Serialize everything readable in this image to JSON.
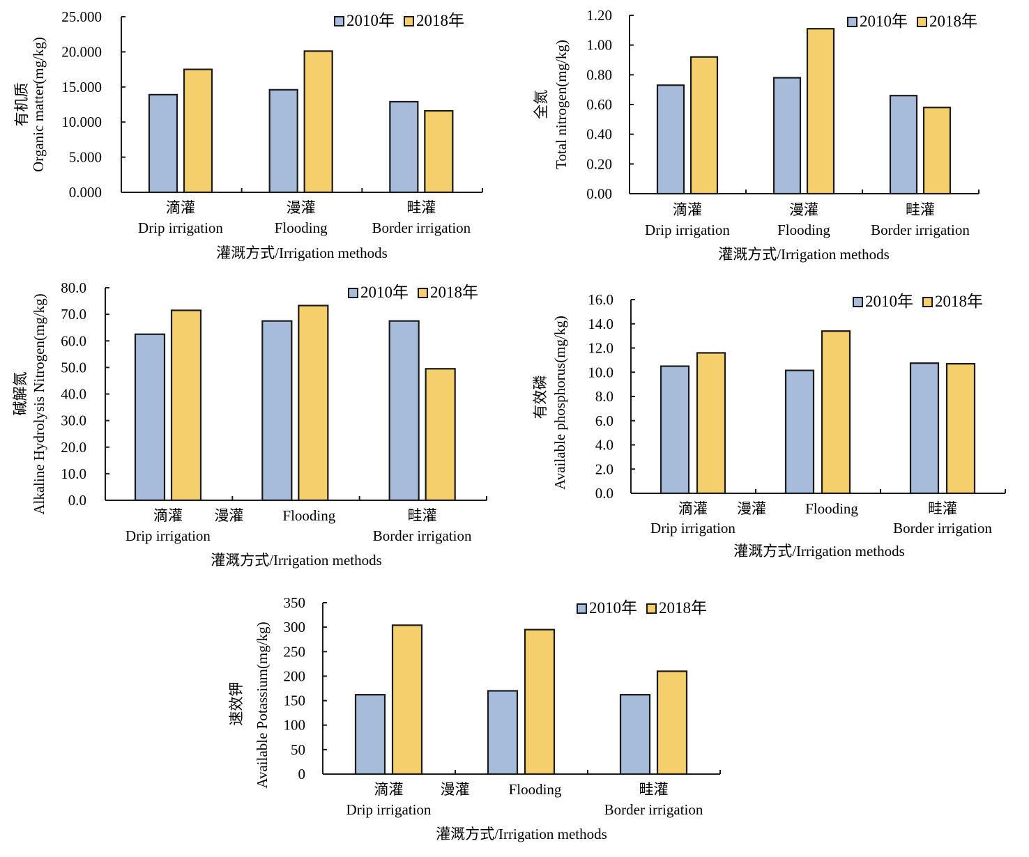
{
  "chart_data": [
    {
      "type": "bar",
      "id": "organic-matter",
      "ylabel_cn": "有机质",
      "ylabel_en": "Organic matter(mg/kg)",
      "xlabel": "灌溉方式/Irrigation methods",
      "categories_cn": [
        "滴灌",
        "漫灌",
        "畦灌"
      ],
      "categories_en": [
        "Drip irrigation",
        "Flooding",
        "Border irrigation"
      ],
      "ylim": [
        0,
        25
      ],
      "yticks": [
        "0.000",
        "5.000",
        "10.000",
        "15.000",
        "20.000",
        "25.000"
      ],
      "ytick_values": [
        0,
        5,
        10,
        15,
        20,
        25
      ],
      "legend": [
        "2010年",
        "2018年"
      ],
      "legend_position": "top-right",
      "series": [
        {
          "name": "2010年",
          "values": [
            13.9,
            14.6,
            12.9
          ]
        },
        {
          "name": "2018年",
          "values": [
            17.5,
            20.1,
            11.6
          ]
        }
      ]
    },
    {
      "type": "bar",
      "id": "total-nitrogen",
      "ylabel_cn": "全氮",
      "ylabel_en": "Total nitrogen(mg/kg)",
      "xlabel": "灌溉方式/Irrigation methods",
      "categories_cn": [
        "滴灌",
        "漫灌",
        "畦灌"
      ],
      "categories_en": [
        "Drip irrigation",
        "Flooding",
        "Border irrigation"
      ],
      "ylim": [
        0,
        1.2
      ],
      "yticks": [
        "0.00",
        "0.20",
        "0.40",
        "0.60",
        "0.80",
        "1.00",
        "1.20"
      ],
      "ytick_values": [
        0,
        0.2,
        0.4,
        0.6,
        0.8,
        1.0,
        1.2
      ],
      "legend": [
        "2010年",
        "2018年"
      ],
      "legend_position": "top-right",
      "series": [
        {
          "name": "2010年",
          "values": [
            0.73,
            0.78,
            0.66
          ]
        },
        {
          "name": "2018年",
          "values": [
            0.92,
            1.11,
            0.58
          ]
        }
      ]
    },
    {
      "type": "bar",
      "id": "alkaline-hydrolysis-nitrogen",
      "ylabel_cn": "碱解氮",
      "ylabel_en": "Alkaline  Hydrolysis  Nitrogen(mg/kg)",
      "xlabel": "灌溉方式/Irrigation methods",
      "categories_cn": [
        "滴灌",
        "漫灌",
        "畦灌"
      ],
      "categories_en": [
        "Drip irrigation",
        "Flooding",
        "Border irrigation"
      ],
      "ylim": [
        0,
        80
      ],
      "yticks": [
        "0.0",
        "10.0",
        "20.0",
        "30.0",
        "40.0",
        "50.0",
        "60.0",
        "70.0",
        "80.0"
      ],
      "ytick_values": [
        0,
        10,
        20,
        30,
        40,
        50,
        60,
        70,
        80
      ],
      "legend": [
        "2010年",
        "2018年"
      ],
      "legend_position": "top-right",
      "series": [
        {
          "name": "2010年",
          "values": [
            62.5,
            67.5,
            67.5
          ]
        },
        {
          "name": "2018年",
          "values": [
            71.5,
            73.3,
            49.5
          ]
        }
      ]
    },
    {
      "type": "bar",
      "id": "available-phosphorus",
      "ylabel_cn": "有效磷",
      "ylabel_en": "Available phosphorus(mg/kg)",
      "xlabel": "灌溉方式/Irrigation methods",
      "categories_cn": [
        "滴灌",
        "漫灌",
        "畦灌"
      ],
      "categories_en": [
        "Drip irrigation",
        "Flooding",
        "Border irrigation"
      ],
      "ylim": [
        0,
        16
      ],
      "yticks": [
        "0.0",
        "2.0",
        "4.0",
        "6.0",
        "8.0",
        "10.0",
        "12.0",
        "14.0",
        "16.0"
      ],
      "ytick_values": [
        0,
        2,
        4,
        6,
        8,
        10,
        12,
        14,
        16
      ],
      "legend": [
        "2010年",
        "2018年"
      ],
      "legend_position": "top-right",
      "series": [
        {
          "name": "2010年",
          "values": [
            10.5,
            10.15,
            10.75
          ]
        },
        {
          "name": "2018年",
          "values": [
            11.6,
            13.4,
            10.7
          ]
        }
      ]
    },
    {
      "type": "bar",
      "id": "available-potassium",
      "ylabel_cn": "速效钾",
      "ylabel_en": "Available Potassium(mg/kg)",
      "xlabel": "灌溉方式/Irrigation methods",
      "categories_cn": [
        "滴灌",
        "漫灌",
        "畦灌"
      ],
      "categories_en": [
        "Drip irrigation",
        "Flooding",
        "Border irrigation"
      ],
      "ylim": [
        0,
        350
      ],
      "yticks": [
        "0",
        "50",
        "100",
        "150",
        "200",
        "250",
        "300",
        "350"
      ],
      "ytick_values": [
        0,
        50,
        100,
        150,
        200,
        250,
        300,
        350
      ],
      "legend": [
        "2010年",
        "2018年"
      ],
      "legend_position": "top-right",
      "series": [
        {
          "name": "2010年",
          "values": [
            162,
            170,
            162
          ]
        },
        {
          "name": "2018年",
          "values": [
            304,
            295,
            210
          ]
        }
      ]
    }
  ],
  "colors": {
    "series_2010": "#a7bbdb",
    "series_2018": "#f4cf6b",
    "axis": "#1a1a1a"
  }
}
